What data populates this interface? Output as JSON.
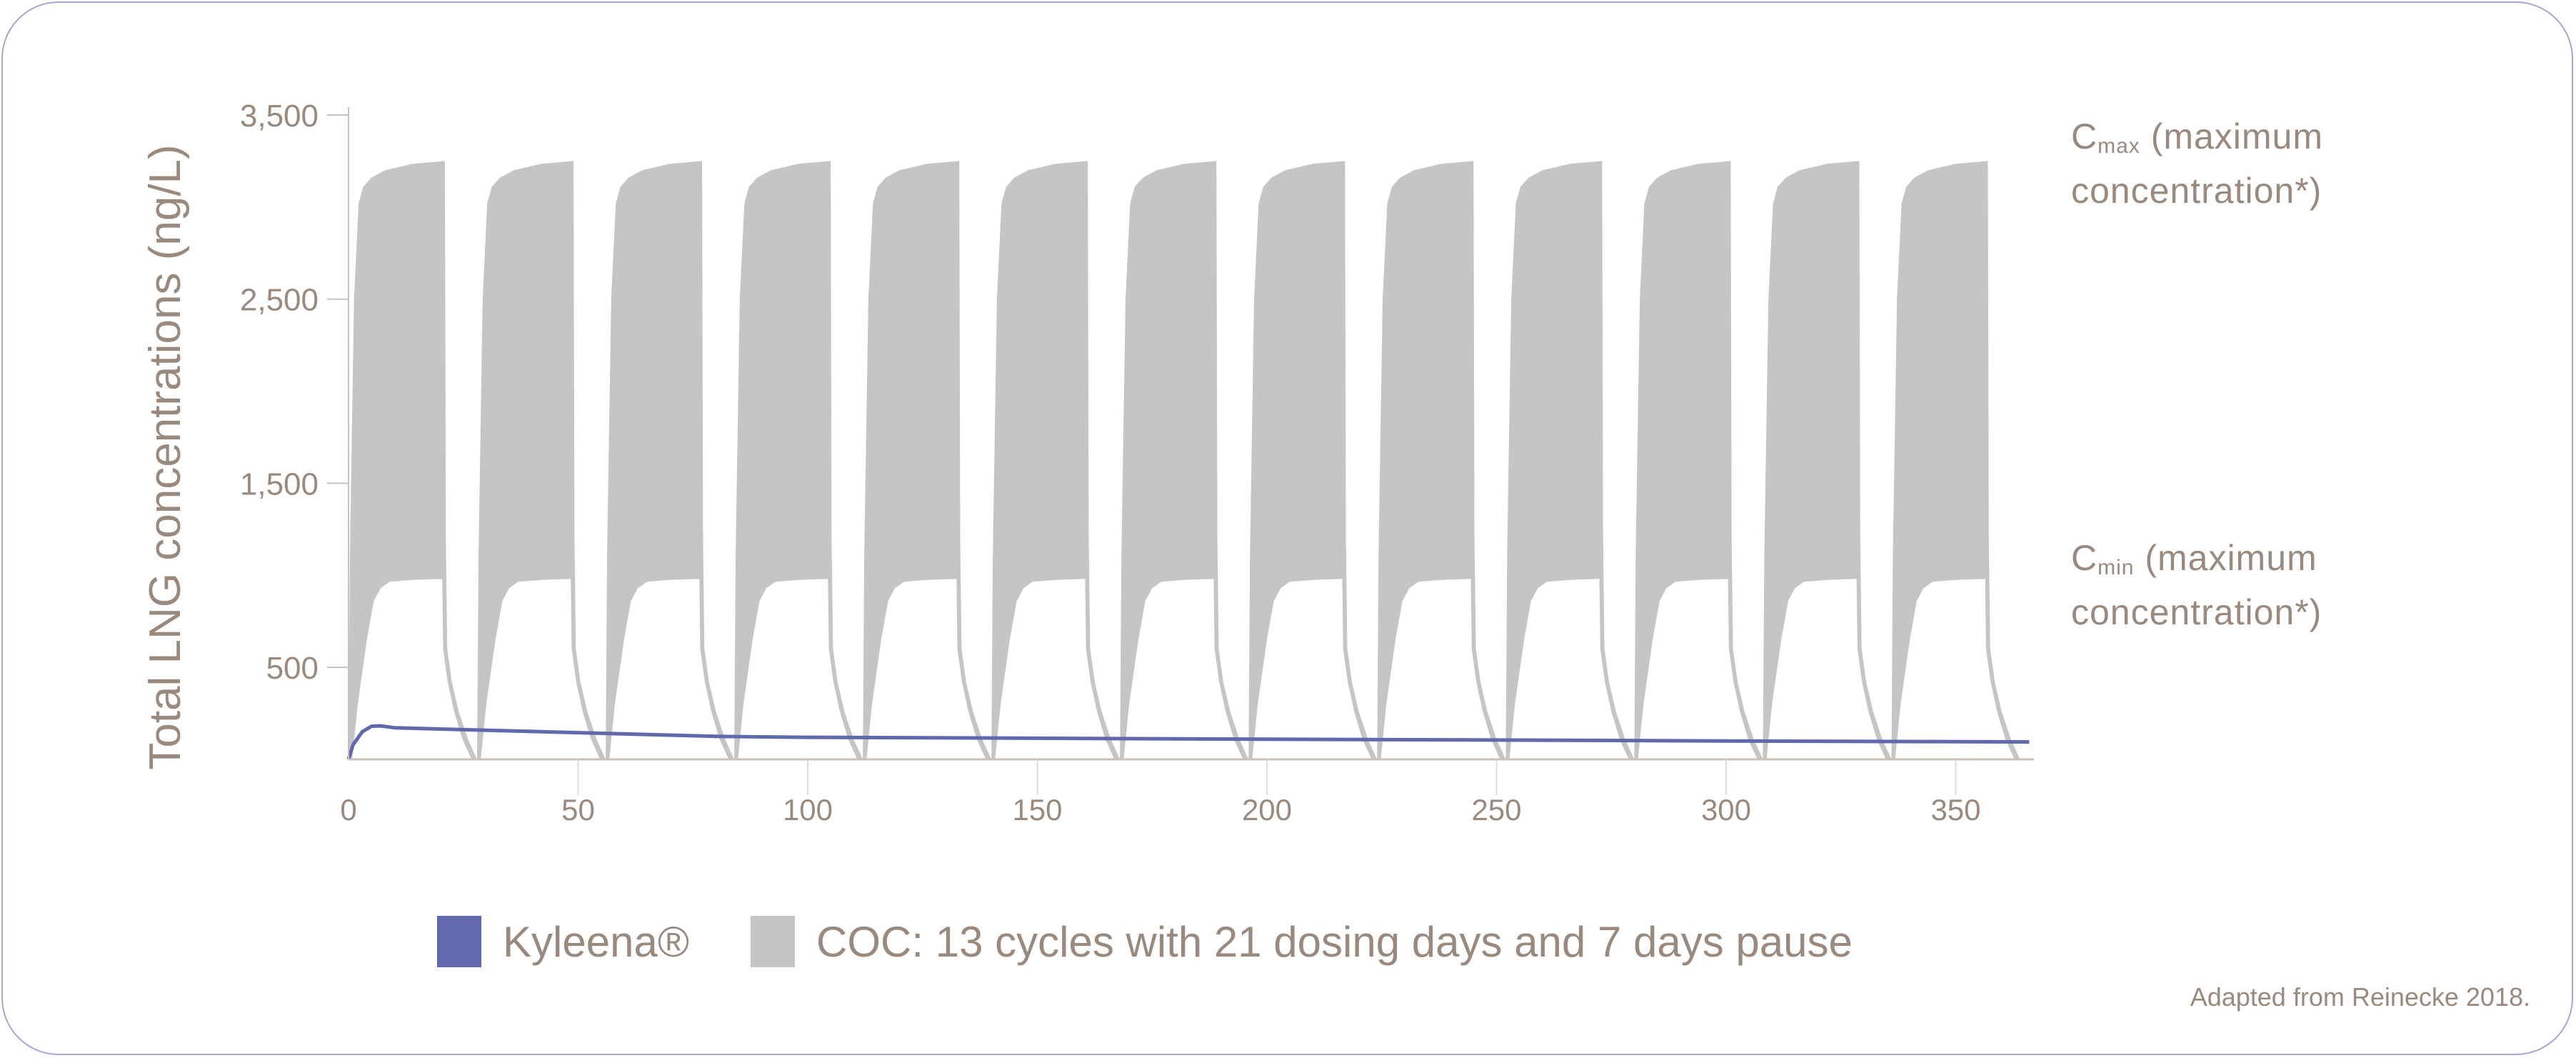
{
  "chart_data": {
    "type": "area",
    "ylabel": "Total LNG concentrations (ng/L)",
    "xlabel": "",
    "xlim": [
      0,
      366
    ],
    "ylim": [
      0,
      3500
    ],
    "x_ticks": [
      0,
      50,
      100,
      150,
      200,
      250,
      300,
      350
    ],
    "x_tick_labels": [
      "0",
      "50",
      "100",
      "150",
      "200",
      "250",
      "300",
      "350"
    ],
    "y_ticks": [
      500,
      1500,
      2500,
      3500
    ],
    "y_tick_labels": [
      "500",
      "1,500",
      "2,500",
      "3,500"
    ],
    "grid": false,
    "legend_position": "bottom",
    "colors": {
      "kyleena": "#6068b0",
      "coc": "#c5c5c5",
      "text": "#9a8a7e",
      "axis": "#c8c0ba"
    },
    "series": [
      {
        "name": "Kyleena®",
        "type": "line",
        "x": [
          0,
          1,
          3,
          5,
          7,
          10,
          20,
          50,
          80,
          100,
          150,
          200,
          250,
          300,
          366
        ],
        "y": [
          0,
          80,
          150,
          180,
          182,
          172,
          165,
          145,
          125,
          120,
          115,
          110,
          105,
          100,
          95
        ]
      },
      {
        "name": "COC: 13 cycles with 21 dosing days and 7 days pause",
        "type": "band",
        "cycles": 13,
        "cycle_length_days": 28,
        "dosing_days": 21,
        "pause_days": 7,
        "cycle_upper": {
          "x": [
            0,
            0.3,
            1.2,
            2.2,
            3.2,
            5,
            8,
            14,
            21,
            21.2,
            21.5,
            22.5,
            24,
            26,
            28
          ],
          "y": [
            0,
            1100,
            2500,
            3020,
            3110,
            3160,
            3200,
            3235,
            3250,
            1200,
            600,
            420,
            260,
            110,
            0
          ]
        },
        "cycle_lower": {
          "x": [
            0.8,
            2,
            4,
            5.5,
            7,
            9,
            14,
            20.4,
            20.6,
            21.6,
            23,
            24.8,
            26.8
          ],
          "y": [
            0,
            300,
            650,
            860,
            930,
            965,
            975,
            980,
            600,
            420,
            260,
            110,
            0
          ]
        }
      }
    ],
    "annotations": [
      {
        "main": "C",
        "sub": "max",
        "text": " (maximum",
        "line2": "concentration*)"
      },
      {
        "main": "C",
        "sub": "min",
        "text": " (maximum",
        "line2": "concentration*)"
      }
    ],
    "legend": [
      "Kyleena®",
      "COC: 13 cycles with 21 dosing days and 7 days pause"
    ],
    "source": "Adapted from Reinecke 2018."
  }
}
